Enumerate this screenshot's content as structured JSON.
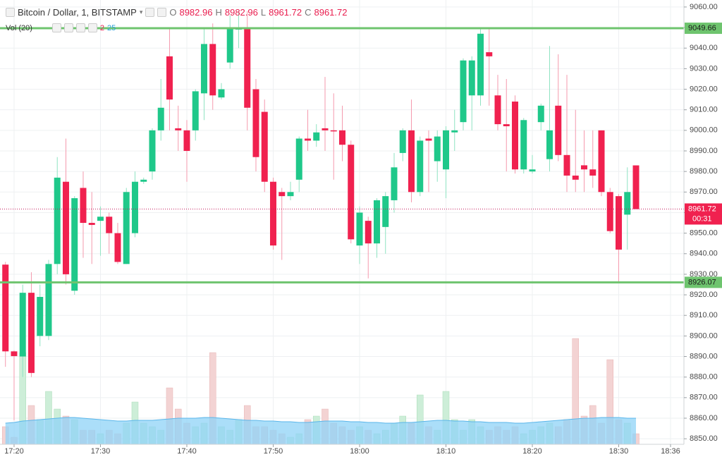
{
  "chart_data": {
    "type": "candlestick",
    "title": "Bitcoin / Dollar, 1, BITSTAMP",
    "ohlc_letters": [
      "O",
      "H",
      "L",
      "C"
    ],
    "volume_title": "Vol (20)",
    "volume_values_text": [
      "2",
      "25"
    ],
    "countdown": "00:31",
    "up_color": "#1fc88a",
    "down_color": "#f0214f",
    "up_volume_color": "#cdeed8",
    "down_volume_color": "#f3d3d3",
    "volume_ma_color": "#8fd3f7",
    "level_color": "#6ec46e",
    "grid": true,
    "x": [
      1039,
      1040,
      1041,
      1042,
      1043,
      1044,
      1045,
      1046,
      1047,
      1048,
      1049,
      1050,
      1051,
      1052,
      1053,
      1054,
      1055,
      1056,
      1057,
      1058,
      1059,
      1060,
      1061,
      1062,
      1063,
      1064,
      1065,
      1066,
      1067,
      1068,
      1069,
      1070,
      1071,
      1072,
      1073,
      1074,
      1075,
      1076,
      1077,
      1078,
      1079,
      1080,
      1081,
      1082,
      1083,
      1084,
      1085,
      1086,
      1087,
      1088,
      1089,
      1090,
      1091,
      1092,
      1093,
      1094,
      1095,
      1096,
      1097,
      1098,
      1099,
      1100,
      1101,
      1102,
      1103,
      1104,
      1105,
      1106,
      1107,
      1108,
      1109,
      1110,
      1111,
      1112
    ],
    "open": [
      8934.7,
      8892.5,
      8890,
      8921,
      8900,
      8900,
      8935,
      8975,
      8922,
      8972,
      8955,
      8956,
      8958,
      8950,
      8935,
      8950,
      8975,
      8980,
      9000,
      9036,
      9001,
      9000,
      9000,
      9018,
      9042,
      9016,
      9033,
      9049,
      9050,
      9020,
      9009,
      8975,
      8970,
      8968,
      8976,
      8996,
      8995,
      9001,
      9000,
      9000,
      8993,
      8944,
      8956,
      8945,
      8953,
      8966,
      8989,
      9000,
      8970,
      8996,
      8985,
      8981,
      8999,
      9004,
      9017,
      9017,
      9038,
      9017,
      9003,
      9014,
      8981,
      8980,
      9004,
      8986,
      9012,
      8988,
      8978,
      8983,
      8981,
      9000,
      8970,
      8968,
      8959,
      8982.96
    ],
    "high": [
      8936,
      8893,
      8925,
      8931,
      8925,
      8937,
      8987,
      8996,
      8968,
      8980,
      8970,
      8963,
      8960,
      8955,
      8972,
      8980,
      8977,
      9001,
      9025,
      9050,
      9012,
      9005,
      9020,
      9050,
      9052,
      9023,
      9056,
      9058,
      9058,
      9025,
      9015,
      8977,
      8972,
      8975,
      8997,
      9010,
      9003,
      9026,
      9018,
      9012,
      8995,
      8963,
      8958,
      8967,
      8970,
      8989,
      9001,
      9015,
      8997,
      9000,
      9000,
      9002,
      9010,
      9035,
      9036,
      9050,
      9050,
      9027,
      9025,
      9017,
      9006,
      8988,
      9013,
      9041,
      9037,
      9027,
      9010,
      9000,
      9000,
      9000,
      8972,
      8969,
      8982,
      8982.96
    ],
    "low": [
      8885,
      8859,
      8880,
      8880,
      8895,
      8898,
      8930,
      8925,
      8920,
      8938,
      8935,
      8939,
      8940,
      8935,
      8935,
      8948,
      8974,
      8976,
      8995,
      9000,
      8990,
      8975,
      8995,
      9005,
      9010,
      9015,
      9030,
      9040,
      9000,
      8980,
      8970,
      8942,
      8937,
      8966,
      8970,
      8990,
      8992,
      8990,
      8976,
      8985,
      8945,
      8935,
      8928,
      8938,
      8940,
      8960,
      8985,
      8965,
      8968,
      8970,
      8975,
      8967,
      8990,
      9000,
      9000,
      9012,
      9012,
      9000,
      8980,
      8979,
      8979,
      8979,
      9000,
      8980,
      8985,
      8970,
      8970,
      8970,
      8972,
      8968,
      8950,
      8926,
      8942,
      8961.72
    ],
    "close": [
      8892.5,
      8890.2,
      8921,
      8882,
      8919,
      8935,
      8977,
      8930,
      8967,
      8955,
      8954,
      8958,
      8950,
      8936,
      8970,
      8975,
      8976,
      9000,
      9011,
      9015,
      9000,
      8990,
      9019,
      9042,
      9017,
      9020,
      9050,
      9050,
      9011,
      8987,
      8975,
      8944,
      8968,
      8970,
      8996,
      8995,
      8999,
      9000,
      8999.5,
      8993,
      8947,
      8960,
      8945,
      8966,
      8968,
      8982,
      9000,
      8970,
      8995,
      8995,
      8997,
      9000,
      9000,
      9034,
      9034,
      9047,
      9036,
      9003,
      9002,
      8981,
      9005,
      8981,
      9012,
      9000,
      8988,
      8978,
      8976,
      8981,
      8978,
      8970,
      8951,
      8942,
      8970,
      8961.72
    ],
    "volume": [
      25,
      10,
      130,
      55,
      35,
      75,
      50,
      40,
      35,
      20,
      20,
      15,
      20,
      15,
      30,
      60,
      30,
      25,
      20,
      80,
      50,
      30,
      25,
      30,
      130,
      25,
      20,
      35,
      55,
      25,
      25,
      20,
      15,
      10,
      15,
      35,
      40,
      50,
      30,
      25,
      20,
      25,
      20,
      15,
      20,
      30,
      40,
      30,
      70,
      25,
      20,
      75,
      35,
      20,
      35,
      25,
      20,
      25,
      20,
      25,
      15,
      20,
      25,
      30,
      25,
      35,
      150,
      40,
      55,
      30,
      120,
      35,
      30,
      15
    ],
    "volume_ma": [
      30,
      31,
      33,
      34,
      35,
      36,
      37,
      38,
      38,
      37,
      36,
      35,
      34,
      33,
      33,
      34,
      34,
      34,
      35,
      36,
      37,
      37,
      37,
      38,
      38,
      37,
      36,
      35,
      34,
      34,
      33,
      33,
      32,
      32,
      31,
      31,
      32,
      33,
      33,
      33,
      32,
      32,
      31,
      31,
      30,
      30,
      31,
      31,
      32,
      33,
      34,
      34,
      33,
      33,
      32,
      32,
      31,
      31,
      31,
      30,
      30,
      31,
      32,
      33,
      34,
      35,
      36,
      37,
      37,
      38,
      38,
      38,
      37,
      37
    ],
    "volume_lim": [
      0,
      630
    ],
    "levels": [
      9049.66,
      8926.07
    ],
    "xlim": [
      1038.37,
      1117.55
    ],
    "xticks": [
      {
        "value": 1040,
        "label": "17:20"
      },
      {
        "value": 1050,
        "label": "17:30"
      },
      {
        "value": 1060,
        "label": "17:40"
      },
      {
        "value": 1070,
        "label": "17:50"
      },
      {
        "value": 1080,
        "label": "18:00"
      },
      {
        "value": 1090,
        "label": "18:10"
      },
      {
        "value": 1100,
        "label": "18:20"
      },
      {
        "value": 1110,
        "label": "18:30"
      },
      {
        "value": 1116,
        "label": "18:36"
      }
    ],
    "ylim": [
      8847.3,
      9063.4
    ],
    "yticks": [
      {
        "value": 8850,
        "label": "8850.00"
      },
      {
        "value": 8860,
        "label": "8860.00"
      },
      {
        "value": 8870,
        "label": "8870.00"
      },
      {
        "value": 8880,
        "label": "8880.00"
      },
      {
        "value": 8890,
        "label": "8890.00"
      },
      {
        "value": 8900,
        "label": "8900.00"
      },
      {
        "value": 8910,
        "label": "8910.00"
      },
      {
        "value": 8920,
        "label": "8920.00"
      },
      {
        "value": 8930,
        "label": "8930.00"
      },
      {
        "value": 8940,
        "label": "8940.00"
      },
      {
        "value": 8950,
        "label": "8950.00"
      },
      {
        "value": 8960,
        "label": "8960.00"
      },
      {
        "value": 8970,
        "label": "8970.00"
      },
      {
        "value": 8980,
        "label": "8980.00"
      },
      {
        "value": 8990,
        "label": "8990.00"
      },
      {
        "value": 9000,
        "label": "9000.00"
      },
      {
        "value": 9010,
        "label": "9010.00"
      },
      {
        "value": 9020,
        "label": "9020.00"
      },
      {
        "value": 9030,
        "label": "9030.00"
      },
      {
        "value": 9040,
        "label": "9040.00"
      },
      {
        "value": 9050,
        "label": "9050.00"
      },
      {
        "value": 9060,
        "label": "9060.00"
      }
    ]
  }
}
